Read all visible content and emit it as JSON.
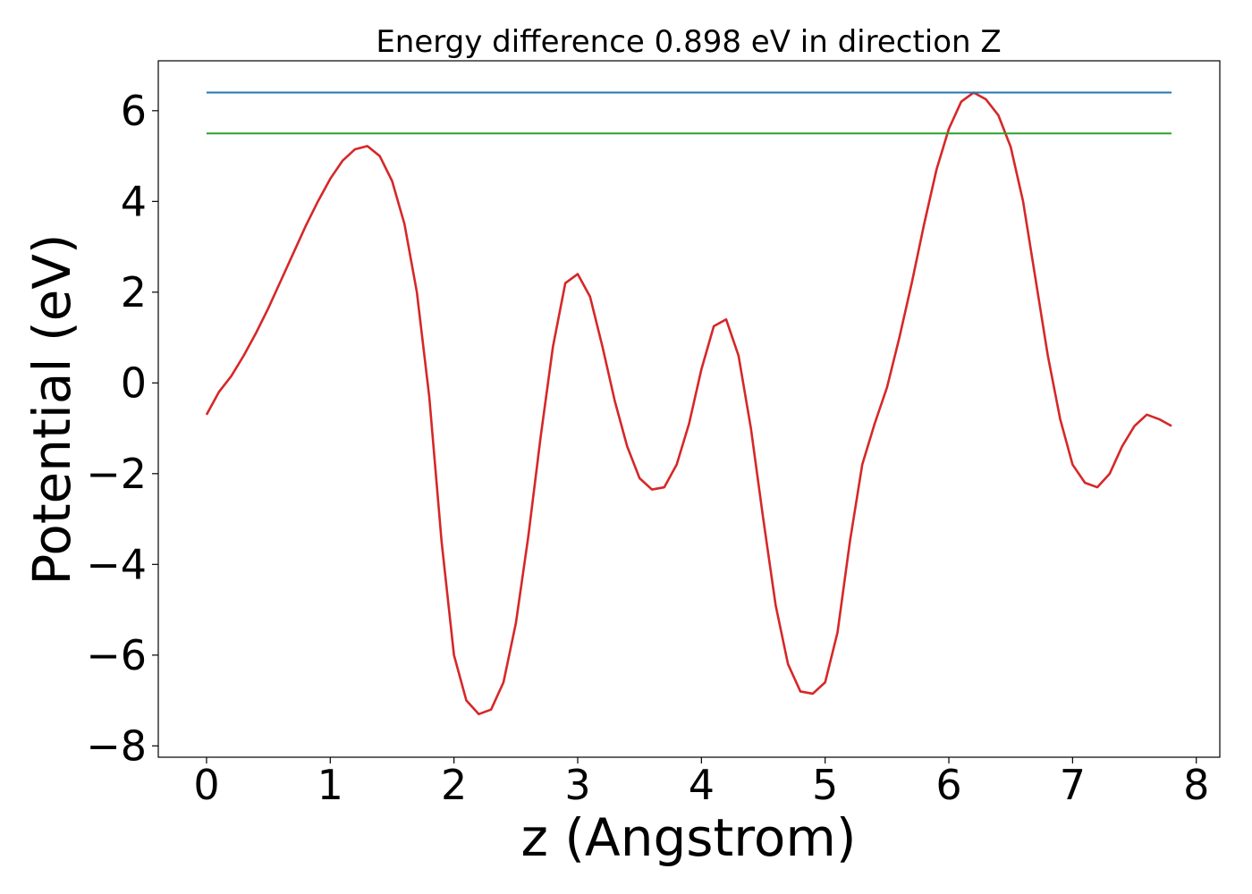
{
  "chart_data": {
    "type": "line",
    "title": "Energy difference 0.898 eV in direction Z",
    "xlabel": "z (Angstrom)",
    "ylabel": "Potential (eV)",
    "xlim": [
      -0.39,
      8.19
    ],
    "ylim": [
      -8.25,
      7.1
    ],
    "xticks": [
      0,
      1,
      2,
      3,
      4,
      5,
      6,
      7,
      8
    ],
    "xtick_labels": [
      "0",
      "1",
      "2",
      "3",
      "4",
      "5",
      "6",
      "7",
      "8"
    ],
    "yticks": [
      -8,
      -6,
      -4,
      -2,
      0,
      2,
      4,
      6
    ],
    "ytick_labels": [
      "−8",
      "−6",
      "−4",
      "−2",
      "0",
      "2",
      "4",
      "6"
    ],
    "grid": false,
    "series": [
      {
        "color": "#d62728",
        "x": [
          0,
          0.1,
          0.2,
          0.3,
          0.4,
          0.5,
          0.6,
          0.7,
          0.8,
          0.9,
          1.0,
          1.1,
          1.2,
          1.3,
          1.4,
          1.5,
          1.6,
          1.7,
          1.8,
          1.9,
          2.0,
          2.1,
          2.2,
          2.3,
          2.4,
          2.5,
          2.6,
          2.7,
          2.8,
          2.9,
          3.0,
          3.1,
          3.2,
          3.3,
          3.4,
          3.5,
          3.6,
          3.7,
          3.8,
          3.9,
          4.0,
          4.1,
          4.2,
          4.3,
          4.4,
          4.5,
          4.6,
          4.7,
          4.8,
          4.9,
          5.0,
          5.1,
          5.2,
          5.3,
          5.4,
          5.5,
          5.6,
          5.7,
          5.8,
          5.9,
          6.0,
          6.1,
          6.2,
          6.3,
          6.4,
          6.5,
          6.6,
          6.7,
          6.8,
          6.9,
          7.0,
          7.1,
          7.2,
          7.3,
          7.4,
          7.5,
          7.6,
          7.7,
          7.8
        ],
        "y": [
          -0.7,
          -0.2,
          0.15,
          0.6,
          1.1,
          1.65,
          2.25,
          2.85,
          3.45,
          4.0,
          4.5,
          4.9,
          5.15,
          5.22,
          5.0,
          4.45,
          3.5,
          2.0,
          -0.3,
          -3.5,
          -6.0,
          -7.0,
          -7.3,
          -7.2,
          -6.6,
          -5.3,
          -3.4,
          -1.2,
          0.8,
          2.2,
          2.4,
          1.9,
          0.8,
          -0.4,
          -1.4,
          -2.1,
          -2.35,
          -2.3,
          -1.8,
          -0.9,
          0.3,
          1.25,
          1.4,
          0.6,
          -1.0,
          -3.0,
          -4.9,
          -6.2,
          -6.8,
          -6.85,
          -6.6,
          -5.5,
          -3.5,
          -1.8,
          -0.9,
          -0.1,
          1.0,
          2.2,
          3.5,
          4.7,
          5.6,
          6.2,
          6.4,
          6.25,
          5.9,
          5.2,
          4.0,
          2.3,
          0.6,
          -0.8,
          -1.8,
          -2.2,
          -2.3,
          -2.0,
          -1.4,
          -0.95,
          -0.7,
          -0.8,
          -0.95
        ]
      },
      {
        "color": "#1f77b4",
        "x": [
          0,
          7.8
        ],
        "y": [
          6.4,
          6.4
        ]
      },
      {
        "color": "#2ca02c",
        "x": [
          0,
          7.8
        ],
        "y": [
          5.5,
          5.5
        ]
      }
    ]
  }
}
